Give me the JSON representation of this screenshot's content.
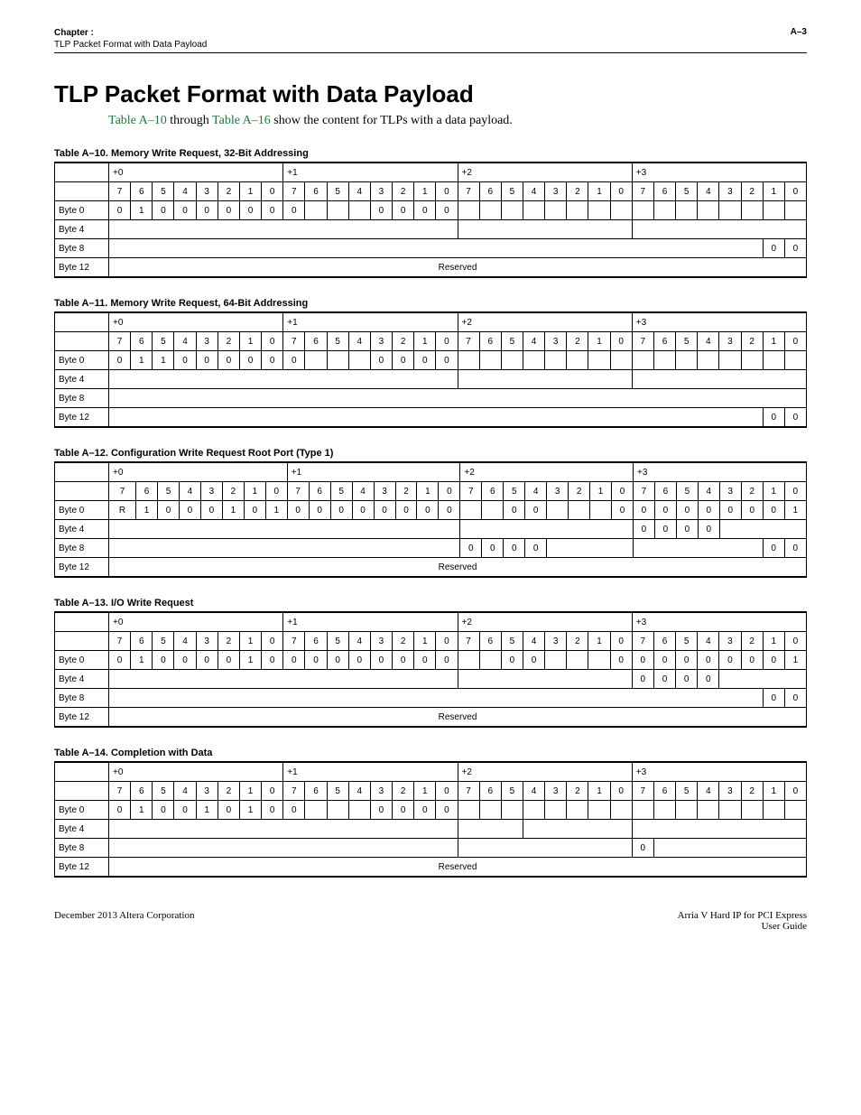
{
  "header": {
    "chapter_prefix": "Chapter :",
    "subtitle": "TLP Packet Format with Data Payload",
    "page": "A–3"
  },
  "title": "TLP Packet Format with Data Payload",
  "intro": {
    "link1": "Table A–10",
    "mid": "through",
    "link2": "Table A–16",
    "tail": "show the content for TLPs with a data payload."
  },
  "offsets": [
    "+0",
    "+1",
    "+2",
    "+3"
  ],
  "bit_headers": [
    "7",
    "6",
    "5",
    "4",
    "3",
    "2",
    "1",
    "0",
    "7",
    "6",
    "5",
    "4",
    "3",
    "2",
    "1",
    "0",
    "7",
    "6",
    "5",
    "4",
    "3",
    "2",
    "1",
    "0",
    "7",
    "6",
    "5",
    "4",
    "3",
    "2",
    "1",
    "0"
  ],
  "row_labels": [
    "Byte 0",
    "Byte 4",
    "Byte 8",
    "Byte 12"
  ],
  "reserved": "Reserved",
  "tables": {
    "a10": {
      "title": "Table A–10.  Memory Write Request, 32-Bit Addressing",
      "byte0": [
        "0",
        "1",
        "0",
        "0",
        "0",
        "0",
        "0",
        "0",
        "0",
        "",
        "",
        "",
        "0",
        "0",
        "0",
        "0",
        "",
        "",
        "",
        "",
        "",
        "",
        "",
        "",
        "",
        "",
        "",
        "",
        "",
        "",
        "",
        ""
      ],
      "byte8_tail": [
        "0",
        "0"
      ]
    },
    "a11": {
      "title": "Table A–11.  Memory Write Request, 64-Bit Addressing",
      "byte0": [
        "0",
        "1",
        "1",
        "0",
        "0",
        "0",
        "0",
        "0",
        "0",
        "",
        "",
        "",
        "0",
        "0",
        "0",
        "0",
        "",
        "",
        "",
        "",
        "",
        "",
        "",
        "",
        "",
        "",
        "",
        "",
        "",
        "",
        "",
        ""
      ],
      "byte12_tail": [
        "0",
        "0"
      ]
    },
    "a12": {
      "title": "Table A–12.  Configuration Write Request Root Port (Type 1)",
      "byte0": [
        "R",
        "1",
        "0",
        "0",
        "0",
        "1",
        "0",
        "1",
        "0",
        "0",
        "0",
        "0",
        "0",
        "0",
        "0",
        "0",
        "",
        "",
        "0",
        "0",
        "",
        "",
        "",
        "0",
        "0",
        "0",
        "0",
        "0",
        "0",
        "0",
        "0",
        "1"
      ],
      "byte4_tail4": [
        "0",
        "0",
        "0",
        "0"
      ],
      "byte8_plus2": [
        "0",
        "0",
        "0",
        "0",
        "",
        "",
        "",
        ""
      ],
      "byte8_tail": [
        "0",
        "0"
      ]
    },
    "a13": {
      "title": "Table A–13.  I/O Write Request",
      "byte0": [
        "0",
        "1",
        "0",
        "0",
        "0",
        "0",
        "1",
        "0",
        "0",
        "0",
        "0",
        "0",
        "0",
        "0",
        "0",
        "0",
        "",
        "",
        "0",
        "0",
        "",
        "",
        "",
        "0",
        "0",
        "0",
        "0",
        "0",
        "0",
        "0",
        "0",
        "1"
      ],
      "byte4_tail4": [
        "0",
        "0",
        "0",
        "0"
      ],
      "byte8_tail": [
        "0",
        "0"
      ]
    },
    "a14": {
      "title": "Table A–14.  Completion with Data",
      "byte0": [
        "0",
        "1",
        "0",
        "0",
        "1",
        "0",
        "1",
        "0",
        "0",
        "",
        "",
        "",
        "0",
        "0",
        "0",
        "0",
        "",
        "",
        "",
        "",
        "",
        "",
        "",
        "",
        "",
        "",
        "",
        "",
        "",
        "",
        "",
        ""
      ],
      "byte8_plus3first": "0"
    }
  },
  "footer": {
    "left": "December 2013   Altera Corporation",
    "right1": "Arria V Hard IP for PCI Express",
    "right2": "User Guide"
  }
}
